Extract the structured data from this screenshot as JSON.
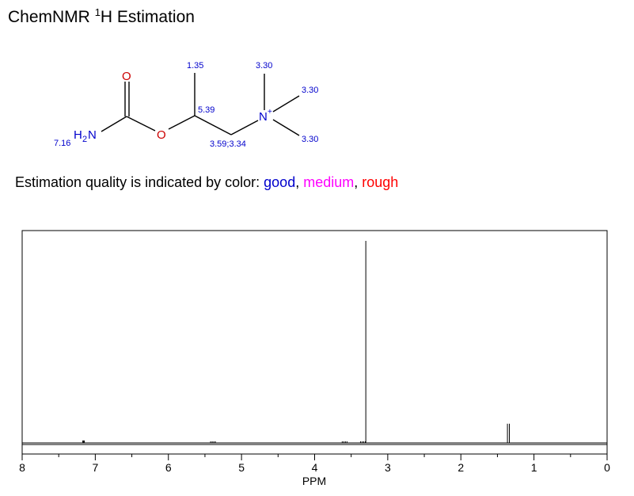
{
  "header": {
    "title_prefix": "ChemNMR ",
    "title_sup": "1",
    "title_suffix": "H Estimation"
  },
  "legend": {
    "intro": "Estimation quality is indicated by color: ",
    "good": "good",
    "sep1": ", ",
    "medium": "medium",
    "sep2": ", ",
    "rough": "rough",
    "colors": {
      "good": "#0000cc",
      "medium": "#ff00ff",
      "rough": "#ff0000"
    }
  },
  "molecule": {
    "atoms": {
      "oxygen_carbonyl": "O",
      "oxygen_ester": "O",
      "amine_h": "H",
      "amine_sub": "2",
      "amine_n": "N",
      "ammonium_n": "N",
      "ammonium_charge": "+"
    },
    "shift_labels": {
      "nh2": "7.16",
      "ch3": "1.35",
      "ch": "5.39",
      "ch2": "3.59;3.34",
      "nme_top": "3.30",
      "nme_right": "3.30",
      "nme_bottom": "3.30"
    }
  },
  "chart_data": {
    "type": "line",
    "xlabel": "PPM",
    "xlim": [
      8,
      0
    ],
    "x_reversed": true,
    "xticks": [
      8,
      7,
      6,
      5,
      4,
      3,
      2,
      1,
      0
    ],
    "peaks": [
      {
        "shift": 7.16,
        "height": 0.012,
        "multiplicity": "broad"
      },
      {
        "shift": 5.39,
        "height": 0.008,
        "multiplicity": "multiplet"
      },
      {
        "shift": 3.59,
        "height": 0.008,
        "multiplicity": "multiplet"
      },
      {
        "shift": 3.34,
        "height": 0.008,
        "multiplicity": "multiplet"
      },
      {
        "shift": 3.3,
        "height": 1.0,
        "multiplicity": "singlet"
      },
      {
        "shift": 1.35,
        "height": 0.095,
        "multiplicity": "doublet"
      }
    ]
  }
}
